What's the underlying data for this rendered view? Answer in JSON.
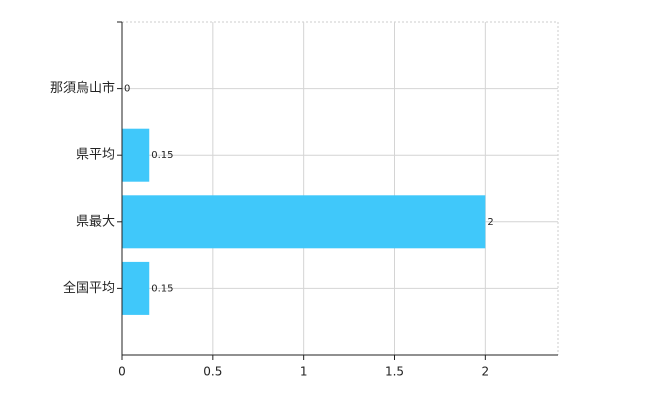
{
  "chart_data": {
    "type": "barh",
    "categories": [
      "那須烏山市",
      "県平均",
      "県最大",
      "全国平均"
    ],
    "values": [
      0,
      0.15,
      2,
      0.15
    ],
    "color": "#40c8fa",
    "xlim": [
      0,
      2.4
    ],
    "xticks": [
      0,
      0.5,
      1,
      1.5,
      2
    ],
    "grid": true
  }
}
